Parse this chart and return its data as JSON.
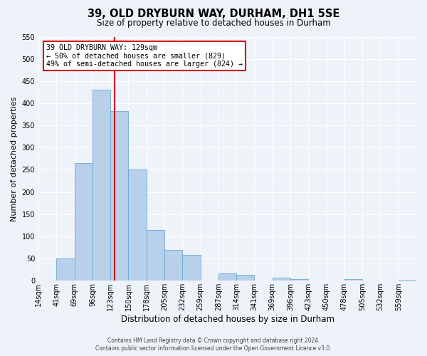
{
  "title": "39, OLD DRYBURN WAY, DURHAM, DH1 5SE",
  "subtitle": "Size of property relative to detached houses in Durham",
  "xlabel": "Distribution of detached houses by size in Durham",
  "ylabel": "Number of detached properties",
  "bar_labels": [
    "14sqm",
    "41sqm",
    "69sqm",
    "96sqm",
    "123sqm",
    "150sqm",
    "178sqm",
    "205sqm",
    "232sqm",
    "259sqm",
    "287sqm",
    "314sqm",
    "341sqm",
    "369sqm",
    "396sqm",
    "423sqm",
    "450sqm",
    "478sqm",
    "505sqm",
    "532sqm",
    "559sqm"
  ],
  "bar_values": [
    0,
    50,
    265,
    430,
    383,
    250,
    115,
    70,
    58,
    0,
    17,
    13,
    0,
    7,
    4,
    0,
    0,
    3,
    0,
    0,
    2
  ],
  "bar_color": "#b8d0ea",
  "bar_edgecolor": "#6aabd2",
  "bar_width": 1.0,
  "ylim": [
    0,
    550
  ],
  "yticks": [
    0,
    50,
    100,
    150,
    200,
    250,
    300,
    350,
    400,
    450,
    500,
    550
  ],
  "vline_color": "#cc0000",
  "annotation_title": "39 OLD DRYBURN WAY: 129sqm",
  "annotation_line1": "← 50% of detached houses are smaller (829)",
  "annotation_line2": "49% of semi-detached houses are larger (824) →",
  "annotation_box_color": "#cc0000",
  "background_color": "#eef2f9",
  "grid_color": "#ffffff",
  "footer_line1": "Contains HM Land Registry data © Crown copyright and database right 2024.",
  "footer_line2": "Contains public sector information licensed under the Open Government Licence v3.0."
}
